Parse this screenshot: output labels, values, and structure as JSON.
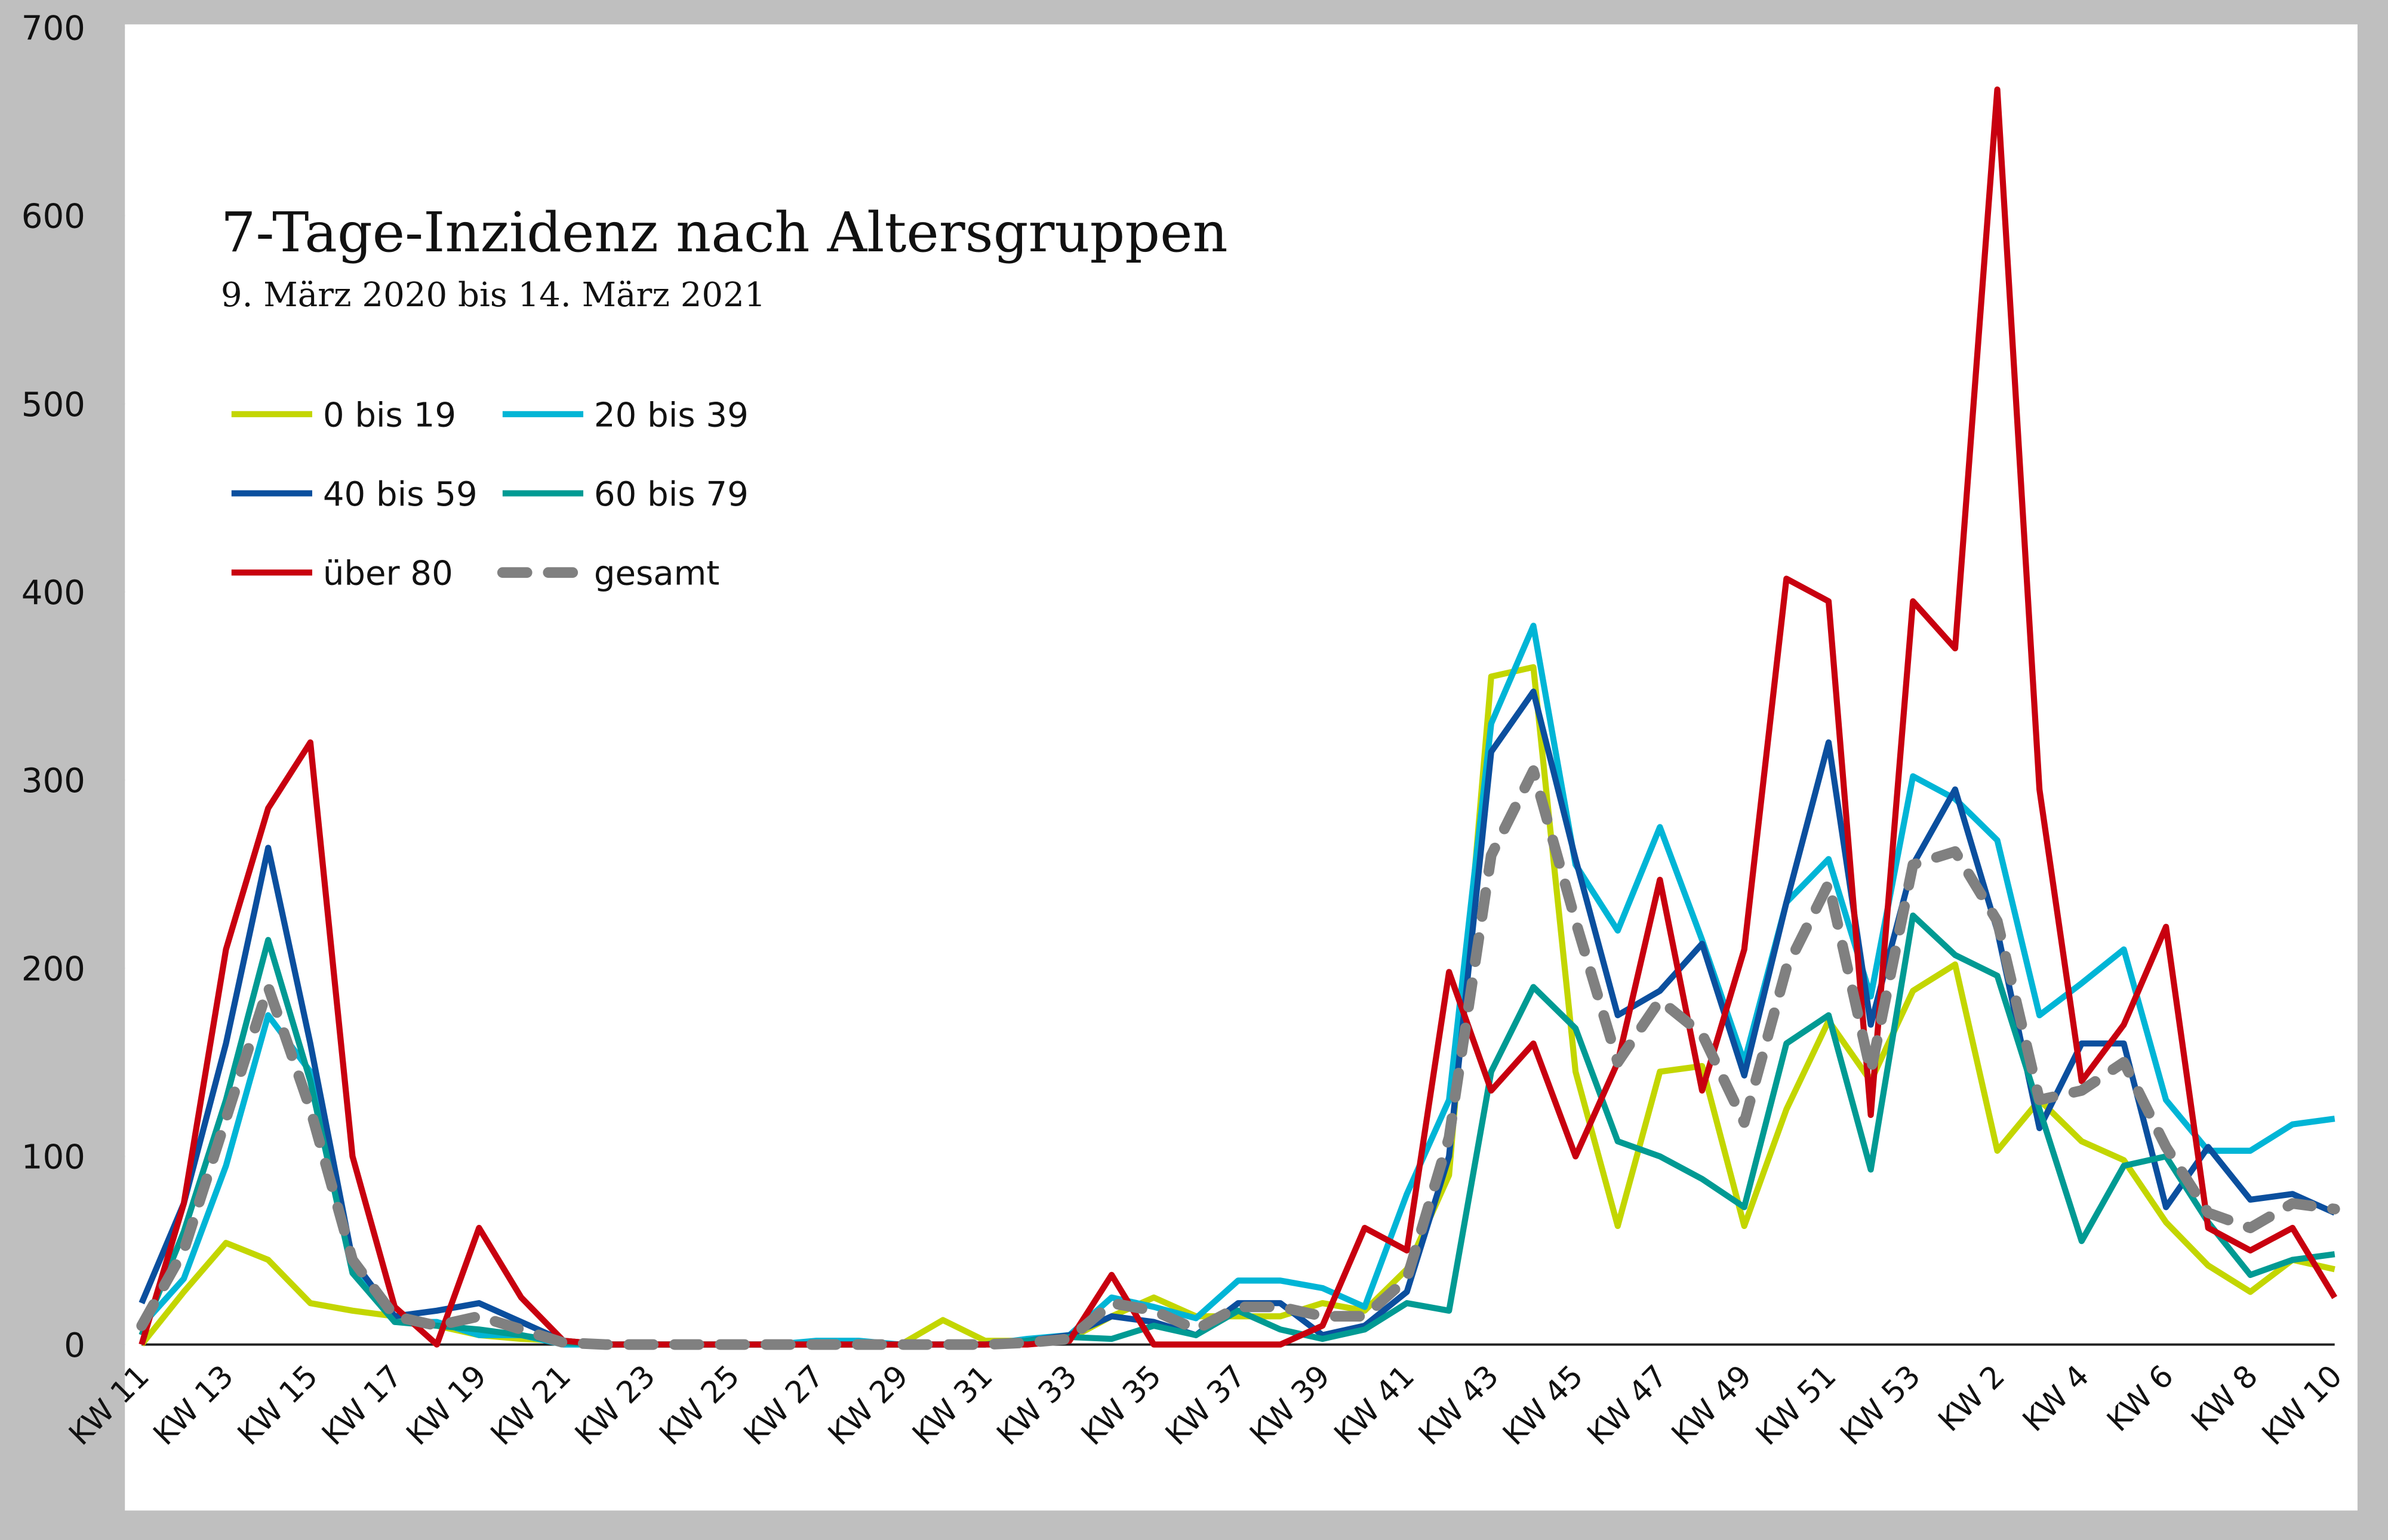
{
  "chart_data": {
    "type": "line",
    "title": "7-Tage-Inzidenz nach Altersgruppen",
    "subtitle": "9. März 2020 bis 14. März 2021",
    "categories": [
      "KW 11",
      null,
      "KW 13",
      null,
      "KW 15",
      null,
      "KW 17",
      null,
      "KW 19",
      null,
      "KW 21",
      null,
      "KW 23",
      null,
      "KW 25",
      null,
      "KW 27",
      null,
      "KW 29",
      null,
      "KW 31",
      null,
      "KW 33",
      null,
      "KW 35",
      null,
      "KW 37",
      null,
      "KW 39",
      null,
      "KW 41",
      null,
      "KW 43",
      null,
      "KW 45",
      null,
      "KW 47",
      null,
      "KW 49",
      null,
      "KW 51",
      null,
      "KW 53",
      null,
      "KW 2",
      null,
      "KW 4",
      null,
      "KW 6",
      null,
      "KW 8",
      null,
      "KW 10"
    ],
    "ylim": [
      0,
      700
    ],
    "yticks": [
      0,
      100,
      200,
      300,
      400,
      500,
      600,
      700
    ],
    "grid": false,
    "legend": "upper left",
    "series": [
      {
        "name": "0 bis 19",
        "color": "#c3d600",
        "dashed": false,
        "values": [
          0,
          28,
          54,
          45,
          22,
          18,
          15,
          10,
          5,
          3,
          2,
          0,
          0,
          0,
          0,
          0,
          0,
          0,
          0,
          13,
          2,
          2,
          3,
          15,
          25,
          15,
          15,
          15,
          22,
          18,
          40,
          90,
          355,
          360,
          145,
          63,
          145,
          148,
          63,
          125,
          172,
          140,
          188,
          202,
          103,
          130,
          108,
          98,
          65,
          42,
          28,
          45,
          40
        ]
      },
      {
        "name": "20 bis 39",
        "color": "#00b5d6",
        "dashed": false,
        "values": [
          10,
          35,
          95,
          175,
          145,
          40,
          12,
          12,
          5,
          5,
          0,
          0,
          0,
          0,
          0,
          0,
          2,
          2,
          0,
          0,
          0,
          3,
          5,
          25,
          20,
          14,
          34,
          34,
          30,
          20,
          80,
          130,
          330,
          382,
          255,
          220,
          275,
          215,
          150,
          235,
          258,
          185,
          302,
          290,
          268,
          175,
          192,
          210,
          130,
          103,
          103,
          117,
          120
        ]
      },
      {
        "name": "40 bis 59",
        "color": "#0b4f9e",
        "dashed": false,
        "values": [
          22,
          75,
          160,
          264,
          160,
          45,
          15,
          18,
          22,
          12,
          2,
          0,
          0,
          0,
          0,
          0,
          0,
          0,
          0,
          0,
          0,
          2,
          5,
          15,
          12,
          5,
          22,
          22,
          5,
          10,
          28,
          100,
          315,
          347,
          258,
          175,
          188,
          213,
          143,
          235,
          320,
          170,
          255,
          295,
          220,
          115,
          160,
          160,
          73,
          105,
          77,
          80,
          70
        ]
      },
      {
        "name": "60 bis 79",
        "color": "#009a93",
        "dashed": false,
        "values": [
          5,
          60,
          130,
          215,
          140,
          38,
          12,
          10,
          8,
          5,
          1,
          0,
          0,
          0,
          0,
          0,
          0,
          0,
          0,
          0,
          0,
          2,
          4,
          3,
          10,
          5,
          18,
          8,
          3,
          8,
          22,
          18,
          145,
          190,
          168,
          108,
          100,
          88,
          73,
          160,
          175,
          93,
          228,
          207,
          196,
          125,
          55,
          95,
          100,
          65,
          37,
          45,
          48
        ]
      },
      {
        "name": "über 80",
        "color": "#c8000f",
        "dashed": false,
        "values": [
          0,
          75,
          210,
          285,
          320,
          100,
          20,
          0,
          62,
          25,
          2,
          0,
          0,
          0,
          0,
          0,
          0,
          0,
          0,
          0,
          0,
          0,
          2,
          37,
          0,
          0,
          0,
          0,
          10,
          62,
          50,
          198,
          135,
          160,
          100,
          150,
          247,
          135,
          210,
          407,
          395,
          122,
          395,
          370,
          667,
          295,
          140,
          170,
          222,
          62,
          50,
          62,
          25
        ]
      },
      {
        "name": "gesamt",
        "color": "#808080",
        "dashed": true,
        "values": [
          10,
          50,
          120,
          190,
          125,
          45,
          15,
          10,
          15,
          8,
          1,
          0,
          0,
          0,
          0,
          0,
          0,
          0,
          0,
          0,
          0,
          1,
          3,
          22,
          18,
          8,
          20,
          20,
          15,
          15,
          35,
          110,
          260,
          305,
          225,
          150,
          183,
          165,
          118,
          200,
          245,
          145,
          255,
          262,
          225,
          130,
          135,
          150,
          105,
          70,
          62,
          75,
          72
        ]
      }
    ]
  }
}
